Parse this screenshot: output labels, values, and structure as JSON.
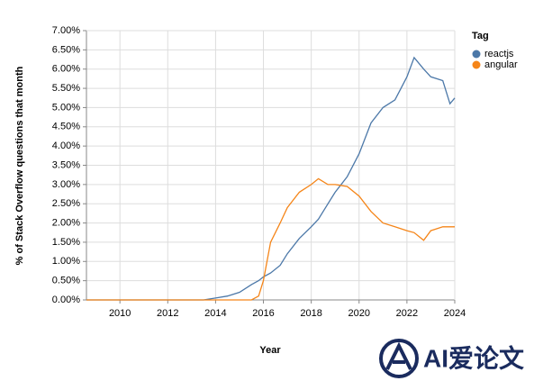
{
  "chart_data": {
    "type": "line",
    "x_label": "Year",
    "y_label": "% of Stack Overflow questions that month",
    "legend_title": "Tag",
    "legend": "right",
    "grid": true,
    "watermark": "AI爱论文",
    "x": [
      2008.6,
      2010,
      2012,
      2013.5,
      2014,
      2014.5,
      2015,
      2015.5,
      2015.8,
      2016,
      2016.3,
      2016.7,
      2017,
      2017.5,
      2018,
      2018.3,
      2018.7,
      2019,
      2019.5,
      2020,
      2020.5,
      2021,
      2021.5,
      2022,
      2022.3,
      2022.7,
      2023,
      2023.5,
      2023.8,
      2024
    ],
    "series": [
      {
        "name": "reactjs",
        "color": "#4c78a8",
        "values": [
          0,
          0,
          0,
          0,
          0.05,
          0.1,
          0.2,
          0.4,
          0.5,
          0.6,
          0.7,
          0.9,
          1.2,
          1.6,
          1.9,
          2.1,
          2.5,
          2.8,
          3.2,
          3.8,
          4.6,
          5.0,
          5.2,
          5.8,
          6.3,
          6.0,
          5.8,
          5.7,
          5.1,
          5.25
        ]
      },
      {
        "name": "angular",
        "color": "#f58518",
        "values": [
          0,
          0,
          0,
          0,
          0,
          0,
          0,
          0,
          0.1,
          0.5,
          1.5,
          2.0,
          2.4,
          2.8,
          3.0,
          3.15,
          3.0,
          3.0,
          2.95,
          2.7,
          2.3,
          2.0,
          1.9,
          1.8,
          1.75,
          1.55,
          1.8,
          1.9,
          1.9,
          1.9
        ]
      }
    ],
    "xlim": [
      2008.6,
      2024
    ],
    "xticks": [
      2010,
      2012,
      2014,
      2016,
      2018,
      2020,
      2022,
      2024
    ],
    "ylim": [
      0,
      7
    ],
    "yticks": [
      {
        "value": 0,
        "label": "0.00%"
      },
      {
        "value": 0.5,
        "label": "0.50%"
      },
      {
        "value": 1,
        "label": "1.00%"
      },
      {
        "value": 1.5,
        "label": "1.50%"
      },
      {
        "value": 2,
        "label": "2.00%"
      },
      {
        "value": 2.5,
        "label": "2.50%"
      },
      {
        "value": 3,
        "label": "3.00%"
      },
      {
        "value": 3.5,
        "label": "3.50%"
      },
      {
        "value": 4,
        "label": "4.00%"
      },
      {
        "value": 4.5,
        "label": "4.50%"
      },
      {
        "value": 5,
        "label": "5.00%"
      },
      {
        "value": 5.5,
        "label": "5.50%"
      },
      {
        "value": 6,
        "label": "6.00%"
      },
      {
        "value": 6.5,
        "label": "6.50%"
      },
      {
        "value": 7,
        "label": "7.00%"
      }
    ]
  }
}
